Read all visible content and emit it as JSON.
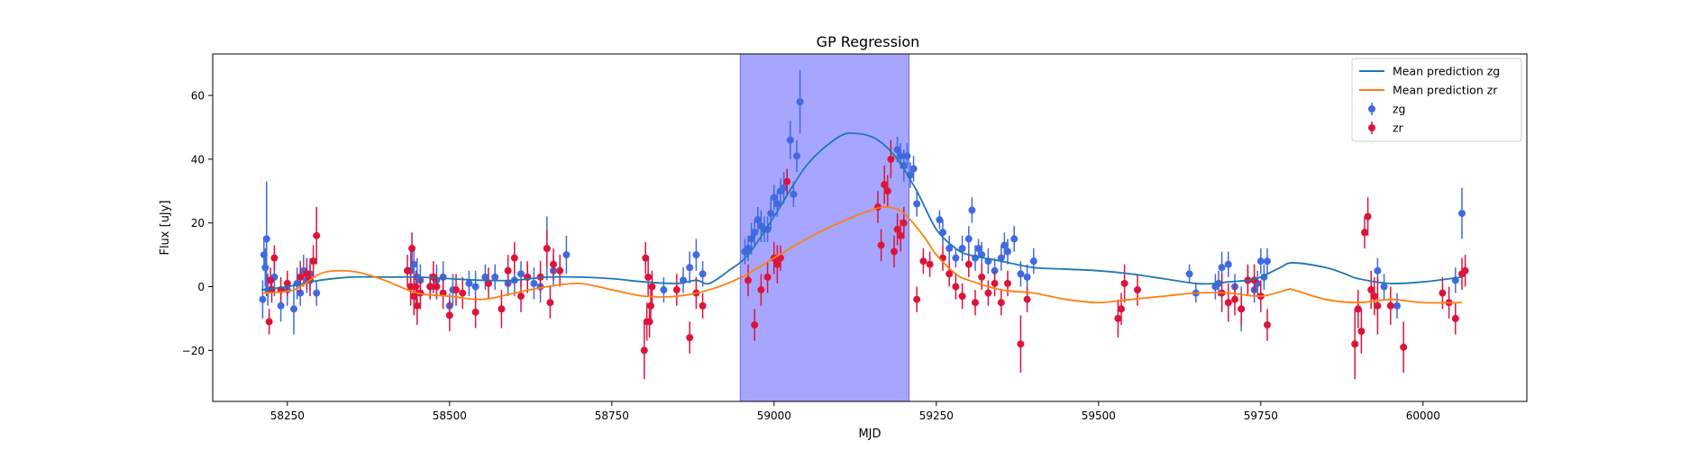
{
  "chart_data": {
    "type": "scatter",
    "title": "GP Regression",
    "xlabel": "MJD",
    "ylabel": "Flux [uJy]",
    "xlim": [
      58135,
      60160
    ],
    "ylim": [
      -36,
      73
    ],
    "xticks": [
      58250,
      58500,
      58750,
      59000,
      59250,
      59500,
      59750,
      60000
    ],
    "yticks": [
      -20,
      0,
      20,
      40,
      60
    ],
    "tick_labels_x": [
      "58250",
      "58500",
      "58750",
      "59000",
      "59250",
      "59500",
      "59750",
      "60000"
    ],
    "tick_labels_y": [
      "−20",
      "0",
      "20",
      "40",
      "60"
    ],
    "grid": false,
    "legend_position": "top-right",
    "highlight_region": {
      "x_start": 58948,
      "x_end": 59208,
      "color": "#a6a6ff"
    },
    "colors": {
      "zg_points": "#4169e1",
      "zr_points": "#dc143c",
      "zg_line": "#1f77b4",
      "zr_line": "#ff7f0e"
    },
    "legend": [
      {
        "label": "Mean prediction zg",
        "kind": "line",
        "color": "#1f77b4"
      },
      {
        "label": "Mean prediction zr",
        "kind": "line",
        "color": "#ff7f0e"
      },
      {
        "label": "zg",
        "kind": "errorbar",
        "color": "#4169e1"
      },
      {
        "label": "zr",
        "kind": "errorbar",
        "color": "#dc143c"
      }
    ],
    "series": [
      {
        "name": "Mean prediction zg",
        "kind": "line",
        "x": [
          58210,
          58250,
          58300,
          58350,
          58400,
          58450,
          58500,
          58550,
          58600,
          58650,
          58700,
          58750,
          58800,
          58850,
          58880,
          58900,
          58930,
          58960,
          59000,
          59050,
          59100,
          59130,
          59160,
          59190,
          59220,
          59250,
          59280,
          59300,
          59350,
          59400,
          59450,
          59500,
          59550,
          59600,
          59650,
          59680,
          59700,
          59730,
          59750,
          59780,
          59800,
          59850,
          59880,
          59900,
          59950,
          60000,
          60060
        ],
        "y": [
          -1,
          0,
          2,
          3,
          3,
          3,
          2.5,
          2,
          2,
          3,
          3,
          2.5,
          1.5,
          1,
          2,
          1,
          5,
          10,
          22,
          38,
          47,
          48,
          46,
          40,
          30,
          18,
          12,
          10,
          8,
          6,
          5.5,
          5,
          4,
          2.5,
          1,
          1,
          1.5,
          2,
          3,
          6,
          7.5,
          6,
          4,
          2.5,
          1,
          1.5,
          3
        ]
      },
      {
        "name": "Mean prediction zr",
        "kind": "line",
        "x": [
          58210,
          58260,
          58300,
          58330,
          58360,
          58400,
          58450,
          58500,
          58550,
          58600,
          58650,
          58700,
          58750,
          58800,
          58850,
          58900,
          58950,
          59000,
          59050,
          59100,
          59150,
          59175,
          59200,
          59230,
          59250,
          59280,
          59300,
          59350,
          59400,
          59450,
          59500,
          59550,
          59600,
          59650,
          59700,
          59750,
          59790,
          59800,
          59850,
          59900,
          59950,
          60000,
          60060
        ],
        "y": [
          -2,
          -1,
          4,
          5,
          4.5,
          2,
          -2,
          -3,
          -4,
          -2,
          0,
          1,
          -1,
          -3,
          -3,
          -1,
          3,
          9,
          15,
          20,
          24,
          25,
          23,
          16,
          10,
          4,
          2,
          -1,
          -2,
          -4,
          -5,
          -4,
          -3,
          -2,
          -2,
          -3,
          -1,
          -1,
          -4,
          -5,
          -4,
          -5,
          -5
        ]
      },
      {
        "name": "zg",
        "kind": "errorbar",
        "x": [
          58212,
          58214,
          58216,
          58218,
          58220,
          58230,
          58240,
          58250,
          58260,
          58265,
          58270,
          58275,
          58280,
          58285,
          58295,
          58440,
          58445,
          58450,
          58455,
          58470,
          58480,
          58490,
          58500,
          58505,
          58530,
          58540,
          58555,
          58570,
          58590,
          58600,
          58610,
          58620,
          58630,
          58640,
          58650,
          58660,
          58680,
          58830,
          58860,
          58870,
          58880,
          58890,
          58955,
          58960,
          58965,
          58970,
          58975,
          58980,
          58985,
          58990,
          58995,
          59000,
          59005,
          59010,
          59015,
          59020,
          59025,
          59030,
          59035,
          59040,
          59190,
          59195,
          59200,
          59205,
          59210,
          59215,
          59220,
          59255,
          59260,
          59270,
          59280,
          59290,
          59300,
          59305,
          59310,
          59315,
          59320,
          59330,
          59340,
          59350,
          59355,
          59360,
          59370,
          59380,
          59390,
          59400,
          59640,
          59650,
          59680,
          59685,
          59690,
          59700,
          59710,
          59720,
          59730,
          59740,
          59745,
          59750,
          59755,
          59760,
          59930,
          59940,
          59960,
          60050,
          60060
        ],
        "y": [
          -4,
          10,
          6,
          15,
          -1,
          3,
          -6,
          -1,
          -7,
          1,
          -2,
          5,
          2,
          4,
          -2,
          5,
          7,
          3,
          2,
          0,
          2,
          3,
          -6,
          -1,
          1,
          0,
          3,
          3,
          1,
          2,
          4,
          3,
          1,
          0,
          12,
          5,
          10,
          -1,
          2,
          6,
          10,
          4,
          11,
          12,
          15,
          17,
          21,
          19,
          18,
          18,
          23,
          28,
          26,
          30,
          31,
          33,
          46,
          29,
          41,
          58,
          43,
          41,
          38,
          41,
          35,
          37,
          26,
          21,
          17,
          12,
          9,
          12,
          15,
          24,
          9,
          12,
          10,
          8,
          5,
          9,
          13,
          11,
          15,
          4,
          3,
          8,
          4,
          -2,
          0,
          1,
          6,
          7,
          0,
          -7,
          2,
          -1,
          1,
          8,
          3,
          8,
          5,
          0,
          -6,
          2,
          23
        ],
        "err": [
          6,
          5,
          6,
          18,
          5,
          6,
          5,
          5,
          8,
          5,
          4,
          5,
          4,
          5,
          4,
          6,
          5,
          6,
          5,
          4,
          5,
          5,
          4,
          5,
          4,
          5,
          4,
          4,
          4,
          5,
          4,
          4,
          5,
          5,
          10,
          5,
          6,
          4,
          4,
          5,
          5,
          4,
          4,
          4,
          5,
          4,
          4,
          5,
          4,
          4,
          5,
          4,
          4,
          4,
          5,
          4,
          6,
          4,
          5,
          10,
          4,
          4,
          5,
          4,
          4,
          4,
          4,
          3,
          4,
          4,
          3,
          4,
          4,
          4,
          4,
          3,
          4,
          4,
          4,
          4,
          4,
          4,
          4,
          4,
          4,
          4,
          3,
          3,
          4,
          4,
          5,
          4,
          4,
          7,
          4,
          4,
          4,
          4,
          4,
          4,
          4,
          4,
          4,
          4,
          8
        ]
      },
      {
        "name": "zr",
        "kind": "errorbar",
        "x": [
          58222,
          58224,
          58226,
          58230,
          58240,
          58250,
          58270,
          58280,
          58285,
          58290,
          58295,
          58435,
          58440,
          58442,
          58445,
          58448,
          58450,
          58455,
          58470,
          58475,
          58480,
          58490,
          58500,
          58510,
          58520,
          58540,
          58560,
          58580,
          58590,
          58600,
          58610,
          58620,
          58640,
          58650,
          58655,
          58660,
          58670,
          58800,
          58802,
          58804,
          58806,
          58808,
          58810,
          58812,
          58850,
          58870,
          58880,
          58890,
          58960,
          58970,
          58980,
          58990,
          59000,
          59005,
          59010,
          59020,
          59160,
          59165,
          59170,
          59175,
          59180,
          59185,
          59190,
          59195,
          59200,
          59220,
          59230,
          59240,
          59260,
          59270,
          59280,
          59290,
          59300,
          59310,
          59320,
          59330,
          59340,
          59350,
          59360,
          59380,
          59390,
          59530,
          59535,
          59540,
          59560,
          59690,
          59700,
          59710,
          59720,
          59730,
          59740,
          59750,
          59760,
          59895,
          59900,
          59905,
          59910,
          59915,
          59920,
          59925,
          59930,
          59950,
          59970,
          60030,
          60040,
          60050,
          60060,
          60065
        ],
        "y": [
          -11,
          2,
          -1,
          9,
          -1,
          1,
          3,
          4,
          2,
          8,
          16,
          5,
          0,
          12,
          -3,
          0,
          -6,
          -2,
          0,
          3,
          0,
          -2,
          -9,
          -1,
          -2,
          -8,
          1,
          -7,
          5,
          9,
          -3,
          3,
          3,
          12,
          -5,
          7,
          5,
          -20,
          9,
          -11,
          3,
          -11,
          -6,
          0,
          -1,
          -16,
          -2,
          -6,
          2,
          -12,
          -1,
          3,
          9,
          7,
          9,
          33,
          25,
          13,
          32,
          30,
          40,
          11,
          18,
          16,
          20,
          -4,
          8,
          7,
          9,
          4,
          0,
          -3,
          7,
          -5,
          3,
          -2,
          1,
          -5,
          1,
          -18,
          -4,
          -10,
          -7,
          1,
          -1,
          -2,
          -5,
          -4,
          -7,
          2,
          2,
          -3,
          -12,
          -18,
          -7,
          -14,
          17,
          22,
          -1,
          -3,
          -6,
          -6,
          -19,
          -2,
          -5,
          -10,
          4,
          5
        ],
        "err": [
          4,
          4,
          4,
          4,
          4,
          4,
          5,
          5,
          5,
          5,
          9,
          5,
          6,
          5,
          6,
          5,
          6,
          5,
          4,
          5,
          4,
          5,
          5,
          5,
          5,
          5,
          5,
          6,
          5,
          5,
          5,
          5,
          5,
          6,
          5,
          5,
          5,
          9,
          5,
          6,
          6,
          5,
          5,
          5,
          5,
          5,
          5,
          4,
          5,
          5,
          5,
          5,
          5,
          6,
          4,
          4,
          5,
          5,
          6,
          5,
          6,
          5,
          5,
          5,
          5,
          4,
          4,
          4,
          4,
          4,
          4,
          4,
          4,
          4,
          4,
          4,
          4,
          4,
          4,
          9,
          4,
          6,
          5,
          6,
          5,
          6,
          6,
          5,
          5,
          5,
          5,
          5,
          5,
          11,
          6,
          7,
          5,
          6,
          6,
          6,
          9,
          6,
          8,
          5,
          5,
          5,
          5,
          5
        ]
      }
    ]
  }
}
